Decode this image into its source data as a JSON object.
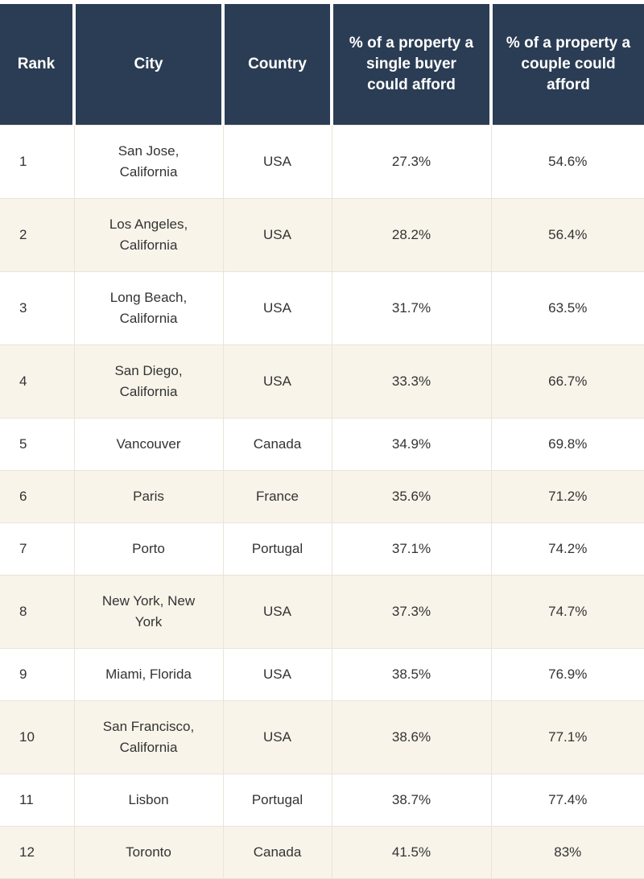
{
  "colors": {
    "header_bg": "#2B3D54",
    "header_text": "#FFFFFF",
    "row_bg": "#FFFFFF",
    "row_alt_bg": "#F9F4EA",
    "border": "#EAE4D8",
    "body_text": "#333333"
  },
  "chart_data": {
    "type": "table",
    "columns": [
      "Rank",
      "City",
      "Country",
      "% of a property a single buyer could afford",
      "% of a property a couple could afford"
    ],
    "rows": [
      [
        "1",
        "San Jose, California",
        "USA",
        "27.3%",
        "54.6%"
      ],
      [
        "2",
        "Los Angeles, California",
        "USA",
        "28.2%",
        "56.4%"
      ],
      [
        "3",
        "Long Beach, California",
        "USA",
        "31.7%",
        "63.5%"
      ],
      [
        "4",
        "San Diego, California",
        "USA",
        "33.3%",
        "66.7%"
      ],
      [
        "5",
        "Vancouver",
        "Canada",
        "34.9%",
        "69.8%"
      ],
      [
        "6",
        "Paris",
        "France",
        "35.6%",
        "71.2%"
      ],
      [
        "7",
        "Porto",
        "Portugal",
        "37.1%",
        "74.2%"
      ],
      [
        "8",
        "New York, New York",
        "USA",
        "37.3%",
        "74.7%"
      ],
      [
        "9",
        "Miami, Florida",
        "USA",
        "38.5%",
        "76.9%"
      ],
      [
        "10",
        "San Francisco, California",
        "USA",
        "38.6%",
        "77.1%"
      ],
      [
        "11",
        "Lisbon",
        "Portugal",
        "38.7%",
        "77.4%"
      ],
      [
        "12",
        "Toronto",
        "Canada",
        "41.5%",
        "83%"
      ]
    ]
  }
}
